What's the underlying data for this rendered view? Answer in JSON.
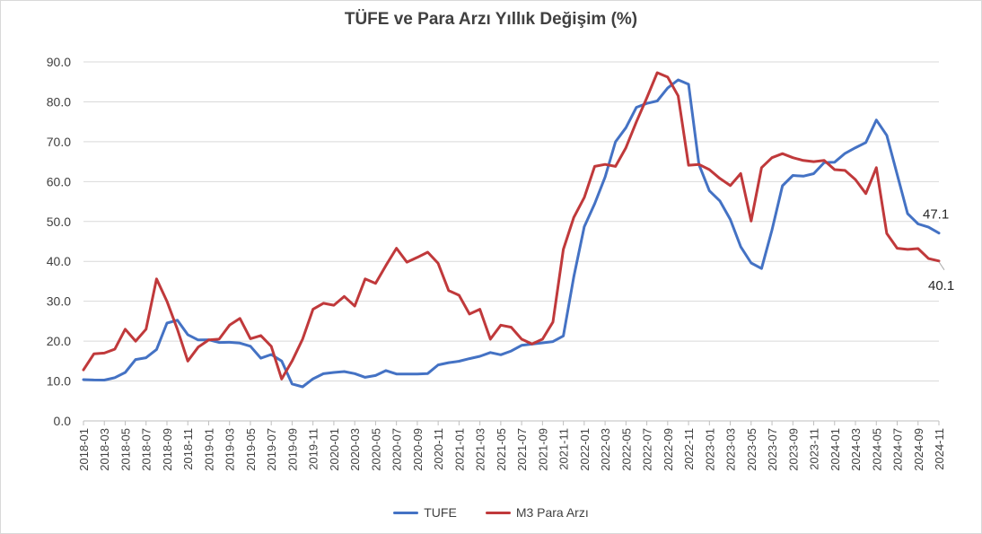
{
  "chart_data": {
    "type": "line",
    "title": "TÜFE ve Para Arzı Yıllık Değişim (%)",
    "xlabel": "",
    "ylabel": "",
    "ylim": [
      0,
      90
    ],
    "yticks": [
      "0.0",
      "10.0",
      "20.0",
      "30.0",
      "40.0",
      "50.0",
      "60.0",
      "70.0",
      "80.0",
      "90.0"
    ],
    "grid": true,
    "legend_position": "bottom",
    "x": [
      "2018-01",
      "2018-02",
      "2018-03",
      "2018-04",
      "2018-05",
      "2018-06",
      "2018-07",
      "2018-08",
      "2018-09",
      "2018-10",
      "2018-11",
      "2018-12",
      "2019-01",
      "2019-02",
      "2019-03",
      "2019-04",
      "2019-05",
      "2019-06",
      "2019-07",
      "2019-08",
      "2019-09",
      "2019-10",
      "2019-11",
      "2019-12",
      "2020-01",
      "2020-02",
      "2020-03",
      "2020-04",
      "2020-05",
      "2020-06",
      "2020-07",
      "2020-08",
      "2020-09",
      "2020-10",
      "2020-11",
      "2020-12",
      "2021-01",
      "2021-02",
      "2021-03",
      "2021-04",
      "2021-05",
      "2021-06",
      "2021-07",
      "2021-08",
      "2021-09",
      "2021-10",
      "2021-11",
      "2021-12",
      "2022-01",
      "2022-02",
      "2022-03",
      "2022-04",
      "2022-05",
      "2022-06",
      "2022-07",
      "2022-08",
      "2022-09",
      "2022-10",
      "2022-11",
      "2022-12",
      "2023-01",
      "2023-02",
      "2023-03",
      "2023-04",
      "2023-05",
      "2023-06",
      "2023-07",
      "2023-08",
      "2023-09",
      "2023-10",
      "2023-11",
      "2023-12",
      "2024-01",
      "2024-02",
      "2024-03",
      "2024-04",
      "2024-05",
      "2024-06",
      "2024-07",
      "2024-08",
      "2024-09",
      "2024-10",
      "2024-11"
    ],
    "xtick_labels": [
      "2018-01",
      "2018-03",
      "2018-05",
      "2018-07",
      "2018-09",
      "2018-11",
      "2019-01",
      "2019-03",
      "2019-05",
      "2019-07",
      "2019-09",
      "2019-11",
      "2020-01",
      "2020-03",
      "2020-05",
      "2020-07",
      "2020-09",
      "2020-11",
      "2021-01",
      "2021-03",
      "2021-05",
      "2021-07",
      "2021-09",
      "2021-11",
      "2022-01",
      "2022-03",
      "2022-05",
      "2022-07",
      "2022-09",
      "2022-11",
      "2023-01",
      "2023-03",
      "2023-05",
      "2023-07",
      "2023-09",
      "2023-11",
      "2024-01",
      "2024-03",
      "2024-05",
      "2024-07",
      "2024-09",
      "2024-11"
    ],
    "series": [
      {
        "name": "TUFE",
        "color": "#4472c4",
        "values": [
          10.35,
          10.26,
          10.23,
          10.85,
          12.15,
          15.39,
          15.85,
          17.9,
          24.52,
          25.24,
          21.62,
          20.3,
          20.35,
          19.67,
          19.71,
          19.5,
          18.71,
          15.72,
          16.65,
          15.01,
          9.26,
          8.55,
          10.56,
          11.84,
          12.15,
          12.37,
          11.86,
          10.94,
          11.39,
          12.62,
          11.76,
          11.77,
          11.75,
          11.89,
          14.03,
          14.6,
          14.97,
          15.61,
          16.19,
          17.14,
          16.59,
          17.53,
          18.95,
          19.25,
          19.58,
          19.89,
          21.31,
          36.08,
          48.69,
          54.44,
          61.14,
          69.97,
          73.5,
          78.62,
          79.6,
          80.21,
          83.45,
          85.51,
          84.39,
          64.27,
          57.68,
          55.18,
          50.51,
          43.68,
          39.59,
          38.21,
          47.83,
          58.94,
          61.53,
          61.36,
          61.98,
          64.77,
          64.86,
          67.07,
          68.5,
          69.8,
          75.45,
          71.6,
          61.78,
          51.97,
          49.38,
          48.58,
          47.09
        ]
      },
      {
        "name": "M3 Para Arzı",
        "color": "#c0393b",
        "values": [
          12.8,
          16.8,
          17.0,
          18.0,
          23.0,
          20.0,
          23.0,
          35.6,
          30.0,
          23.0,
          15.0,
          18.5,
          20.3,
          20.5,
          24.0,
          25.7,
          20.6,
          21.4,
          18.7,
          10.5,
          15.0,
          20.5,
          28.0,
          29.5,
          29.0,
          31.2,
          28.8,
          35.6,
          34.5,
          39.0,
          43.3,
          39.8,
          41.0,
          42.3,
          39.5,
          32.7,
          31.5,
          26.8,
          28.0,
          20.5,
          24.0,
          23.5,
          20.5,
          19.3,
          20.5,
          24.8,
          43.0,
          51.0,
          56.0,
          63.8,
          64.3,
          63.8,
          68.5,
          75.0,
          81.0,
          87.3,
          86.2,
          81.5,
          64.1,
          64.3,
          63.0,
          60.8,
          59.0,
          62.0,
          50.1,
          63.5,
          66.0,
          67.0,
          66.0,
          65.3,
          65.0,
          65.3,
          63.0,
          62.8,
          60.5,
          57.0,
          63.5,
          47.0,
          43.3,
          43.0,
          43.2,
          40.7,
          40.1
        ]
      }
    ],
    "annotations": [
      {
        "text": "47.1",
        "series": 0,
        "index": 82
      },
      {
        "text": "40.1",
        "series": 1,
        "index": 82
      }
    ]
  }
}
